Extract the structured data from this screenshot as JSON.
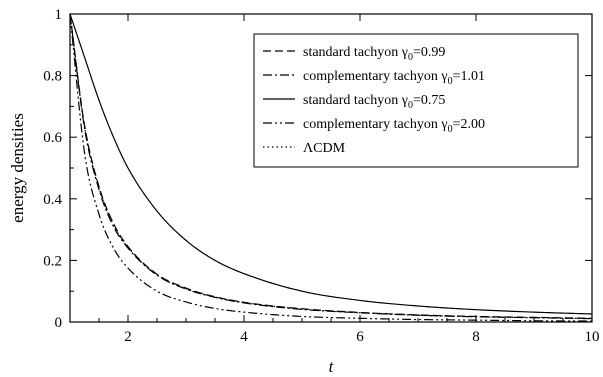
{
  "chart_data": {
    "type": "line",
    "xlabel": "t",
    "ylabel": "energy densities",
    "xlim": [
      1,
      10
    ],
    "ylim": [
      0,
      1
    ],
    "xticks": [
      2,
      4,
      6,
      8,
      10
    ],
    "yticks": [
      0,
      0.2,
      0.4,
      0.6,
      0.8,
      1
    ],
    "ytick_labels": [
      "0",
      "0.2",
      "0.4",
      "0.6",
      "0.8",
      "1"
    ],
    "grid": false,
    "legend_position": "top-right",
    "x": [
      1,
      1.25,
      1.5,
      1.75,
      2,
      2.5,
      3,
      3.5,
      4,
      5,
      6,
      7,
      8,
      9,
      10
    ],
    "series": [
      {
        "name": "standard tachyon γ0=0.99",
        "name_prefix": "standard tachyon γ",
        "name_sub": "0",
        "name_suffix": "=0.99",
        "style": "dashed",
        "values": [
          1,
          0.64,
          0.44,
          0.32,
          0.245,
          0.155,
          0.11,
          0.082,
          0.064,
          0.043,
          0.031,
          0.023,
          0.018,
          0.015,
          0.012
        ]
      },
      {
        "name": "complementary tachyon γ0=1.01",
        "name_prefix": "complementary tachyon γ",
        "name_sub": "0",
        "name_suffix": "=1.01",
        "style": "dash-dot",
        "values": [
          1,
          0.63,
          0.43,
          0.31,
          0.24,
          0.152,
          0.107,
          0.08,
          0.062,
          0.041,
          0.03,
          0.022,
          0.017,
          0.014,
          0.011
        ]
      },
      {
        "name": "standard tachyon γ0=0.75",
        "name_prefix": "standard tachyon γ",
        "name_sub": "0",
        "name_suffix": "=0.75",
        "style": "solid",
        "values": [
          1,
          0.86,
          0.72,
          0.6,
          0.5,
          0.36,
          0.265,
          0.2,
          0.157,
          0.1,
          0.07,
          0.052,
          0.04,
          0.032,
          0.026
        ]
      },
      {
        "name": "complementary tachyon γ0=2.00",
        "name_prefix": "complementary tachyon γ",
        "name_sub": "0",
        "name_suffix": "=2.00",
        "style": "dash-dot-dot",
        "values": [
          1,
          0.55,
          0.35,
          0.24,
          0.175,
          0.1,
          0.065,
          0.044,
          0.032,
          0.018,
          0.012,
          0.008,
          0.006,
          0.004,
          0.003
        ]
      },
      {
        "name": "ΛCDM",
        "name_prefix": "ΛCDM",
        "name_sub": "",
        "name_suffix": "",
        "style": "dotted",
        "values": [
          1,
          0.635,
          0.435,
          0.315,
          0.243,
          0.153,
          0.108,
          0.081,
          0.063,
          0.042,
          0.03,
          0.022,
          0.017,
          0.014,
          0.011
        ]
      }
    ]
  }
}
